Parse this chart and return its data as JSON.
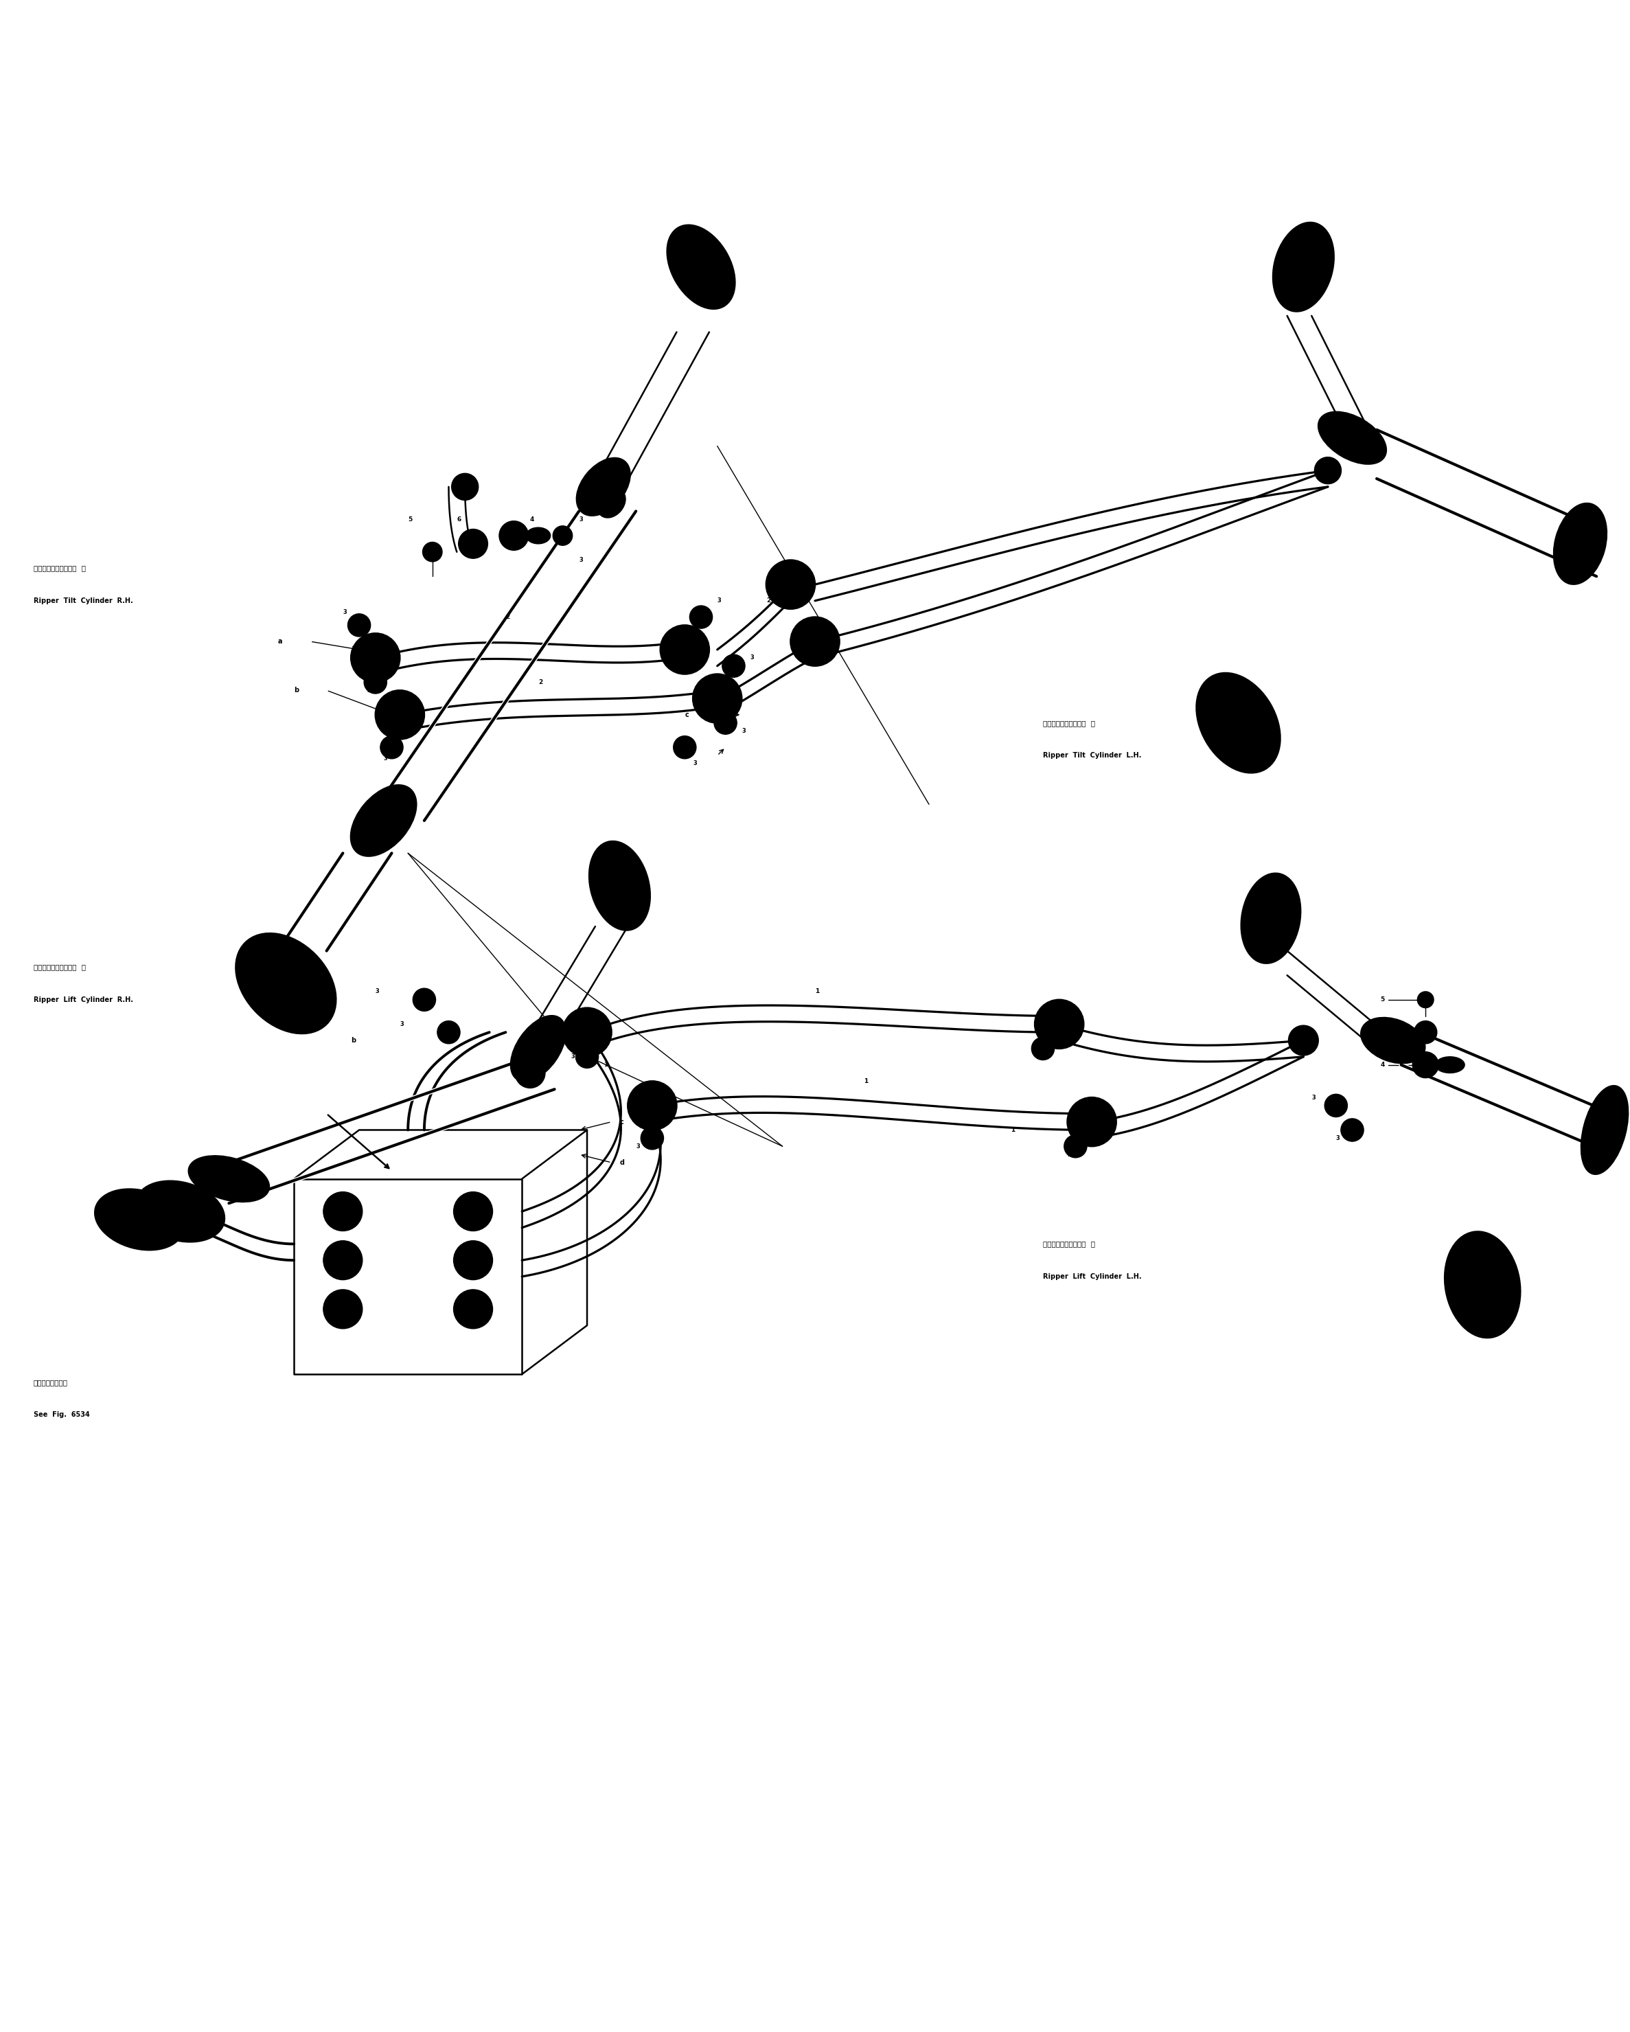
{
  "background_color": "#ffffff",
  "line_color": "#000000",
  "fig_width": 23.74,
  "fig_height": 29.59,
  "labels": {
    "rh_tilt_jp": "リッパチルトシリンダ  右",
    "rh_tilt_en": "Ripper  Tilt  Cylinder  R.H.",
    "lh_tilt_jp": "リッパチルトシリンダ  左",
    "lh_tilt_en": "Ripper  Tilt  Cylinder  L.H.",
    "rh_lift_jp": "リッパリフトシリンダ  右",
    "rh_lift_en": "Ripper  Lift  Cylinder  R.H.",
    "lh_lift_jp": "リッパリフトシリンダ  左",
    "lh_lift_en": "Ripper  Lift  Cylinder  L.H.",
    "see_fig_jp": "第６５３４図参照",
    "see_fig_en": "See  Fig.  6534"
  }
}
